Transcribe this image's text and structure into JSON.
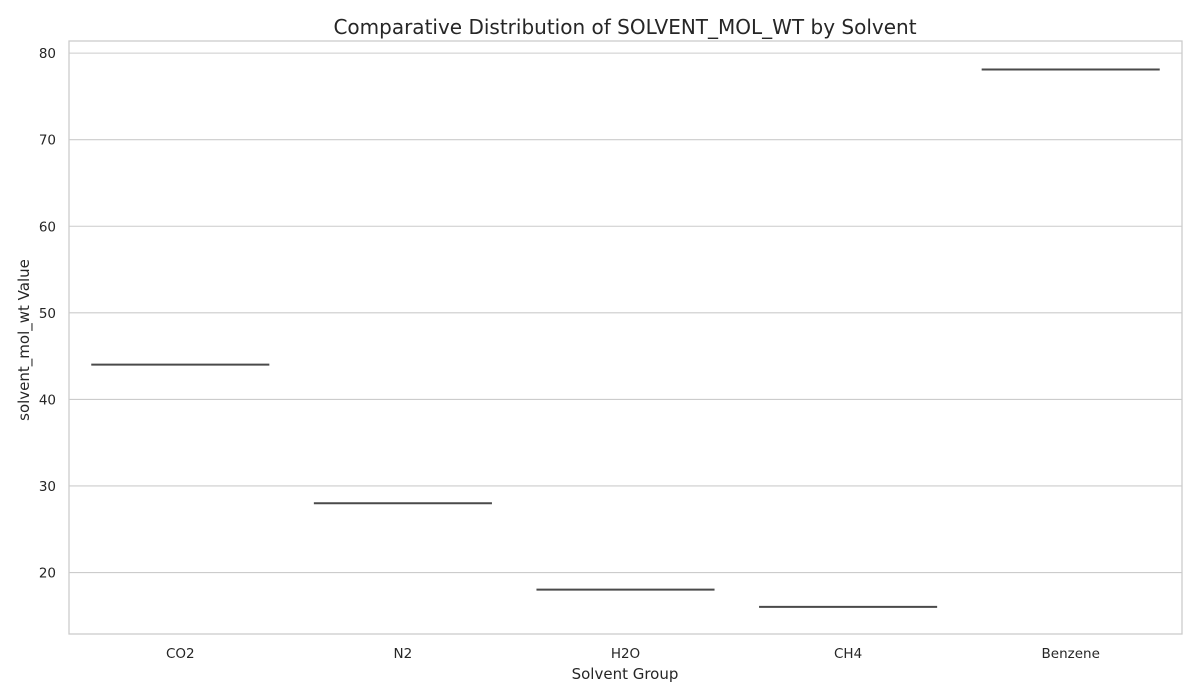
{
  "chart_data": {
    "type": "box",
    "title": "Comparative Distribution of SOLVENT_MOL_WT by Solvent",
    "xlabel": "Solvent Group",
    "ylabel": "solvent_mol_wt Value",
    "categories": [
      "CO2",
      "N2",
      "H2O",
      "CH4",
      "Benzene"
    ],
    "series": [
      {
        "values": [
          44.01,
          28.01,
          18.02,
          16.04,
          78.11
        ]
      }
    ],
    "ylim": [
      12.9,
      81.4
    ],
    "yticks": [
      20,
      30,
      40,
      50,
      60,
      70,
      80
    ],
    "grid": true,
    "colors": {
      "median": "#4a4a4a",
      "grid": "#cccccc",
      "text": "#262626"
    }
  }
}
